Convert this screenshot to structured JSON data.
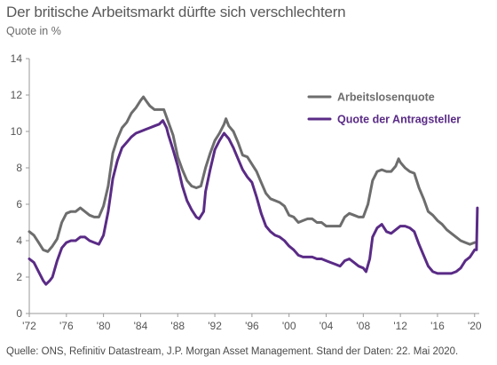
{
  "header": {
    "title": "Der britische Arbeitsmarkt dürfte sich verschlechtern",
    "subtitle": "Quote in %"
  },
  "footer": {
    "source": "Quelle: ONS, Refinitiv Datastream, J.P. Morgan Asset Management. Stand der Daten: 22. Mai 2020."
  },
  "chart_data": {
    "type": "line",
    "title": "Der britische Arbeitsmarkt dürfte sich verschlechtern",
    "subtitle": "Quote in %",
    "xlabel": "",
    "ylabel": "Quote in %",
    "xlim": [
      1972,
      2020.5
    ],
    "ylim": [
      0,
      14
    ],
    "y_ticks": [
      0,
      2,
      4,
      6,
      8,
      10,
      12,
      14
    ],
    "y_tick_labels": [
      "0",
      "2",
      "4",
      "6",
      "8",
      "10",
      "12",
      "14"
    ],
    "x_ticks": [
      1972,
      1976,
      1980,
      1984,
      1988,
      1992,
      1996,
      2000,
      2004,
      2008,
      2012,
      2016,
      2020
    ],
    "x_tick_labels": [
      "'72",
      "'76",
      "'80",
      "'84",
      "'88",
      "'92",
      "'96",
      "'00",
      "'04",
      "'08",
      "'12",
      "'16",
      "'20"
    ],
    "grid": false,
    "legend_position": "top-right",
    "series": [
      {
        "name": "Arbeitslosenquote",
        "color": "#6d6d6d",
        "points": [
          [
            1972.0,
            4.5
          ],
          [
            1972.5,
            4.3
          ],
          [
            1973.0,
            3.9
          ],
          [
            1973.5,
            3.5
          ],
          [
            1974.0,
            3.4
          ],
          [
            1974.5,
            3.7
          ],
          [
            1975.0,
            4.1
          ],
          [
            1975.5,
            5.0
          ],
          [
            1976.0,
            5.5
          ],
          [
            1976.5,
            5.6
          ],
          [
            1977.0,
            5.6
          ],
          [
            1977.5,
            5.8
          ],
          [
            1978.0,
            5.6
          ],
          [
            1978.5,
            5.4
          ],
          [
            1979.0,
            5.3
          ],
          [
            1979.5,
            5.3
          ],
          [
            1980.0,
            5.9
          ],
          [
            1980.5,
            7.0
          ],
          [
            1981.0,
            8.8
          ],
          [
            1981.5,
            9.6
          ],
          [
            1982.0,
            10.2
          ],
          [
            1982.5,
            10.5
          ],
          [
            1983.0,
            11.0
          ],
          [
            1983.5,
            11.3
          ],
          [
            1984.0,
            11.7
          ],
          [
            1984.3,
            11.9
          ],
          [
            1984.7,
            11.6
          ],
          [
            1985.0,
            11.4
          ],
          [
            1985.5,
            11.2
          ],
          [
            1986.0,
            11.2
          ],
          [
            1986.5,
            11.2
          ],
          [
            1987.0,
            10.5
          ],
          [
            1987.5,
            9.8
          ],
          [
            1988.0,
            8.6
          ],
          [
            1988.5,
            7.9
          ],
          [
            1989.0,
            7.3
          ],
          [
            1989.5,
            7.0
          ],
          [
            1990.0,
            6.9
          ],
          [
            1990.5,
            7.0
          ],
          [
            1991.0,
            8.0
          ],
          [
            1991.5,
            8.8
          ],
          [
            1992.0,
            9.5
          ],
          [
            1992.5,
            9.9
          ],
          [
            1993.0,
            10.4
          ],
          [
            1993.2,
            10.7
          ],
          [
            1993.5,
            10.3
          ],
          [
            1994.0,
            10.0
          ],
          [
            1994.5,
            9.4
          ],
          [
            1995.0,
            8.7
          ],
          [
            1995.5,
            8.6
          ],
          [
            1996.0,
            8.2
          ],
          [
            1996.5,
            7.8
          ],
          [
            1997.0,
            7.2
          ],
          [
            1997.5,
            6.6
          ],
          [
            1998.0,
            6.3
          ],
          [
            1998.5,
            6.2
          ],
          [
            1999.0,
            6.1
          ],
          [
            1999.5,
            5.9
          ],
          [
            2000.0,
            5.4
          ],
          [
            2000.5,
            5.3
          ],
          [
            2001.0,
            5.0
          ],
          [
            2001.5,
            5.1
          ],
          [
            2002.0,
            5.2
          ],
          [
            2002.5,
            5.2
          ],
          [
            2003.0,
            5.0
          ],
          [
            2003.5,
            5.0
          ],
          [
            2004.0,
            4.8
          ],
          [
            2004.5,
            4.8
          ],
          [
            2005.0,
            4.8
          ],
          [
            2005.5,
            4.8
          ],
          [
            2006.0,
            5.3
          ],
          [
            2006.5,
            5.5
          ],
          [
            2007.0,
            5.4
          ],
          [
            2007.5,
            5.3
          ],
          [
            2008.0,
            5.3
          ],
          [
            2008.5,
            6.0
          ],
          [
            2009.0,
            7.3
          ],
          [
            2009.5,
            7.8
          ],
          [
            2010.0,
            7.9
          ],
          [
            2010.5,
            7.8
          ],
          [
            2011.0,
            7.8
          ],
          [
            2011.5,
            8.1
          ],
          [
            2011.8,
            8.5
          ],
          [
            2012.0,
            8.3
          ],
          [
            2012.5,
            8.0
          ],
          [
            2013.0,
            7.8
          ],
          [
            2013.5,
            7.7
          ],
          [
            2014.0,
            6.9
          ],
          [
            2014.5,
            6.3
          ],
          [
            2015.0,
            5.6
          ],
          [
            2015.5,
            5.4
          ],
          [
            2016.0,
            5.1
          ],
          [
            2016.5,
            4.9
          ],
          [
            2017.0,
            4.6
          ],
          [
            2017.5,
            4.4
          ],
          [
            2018.0,
            4.2
          ],
          [
            2018.5,
            4.0
          ],
          [
            2019.0,
            3.9
          ],
          [
            2019.5,
            3.8
          ],
          [
            2020.0,
            3.9
          ]
        ]
      },
      {
        "name": "Quote der Antragsteller",
        "color": "#5a2b86",
        "points": [
          [
            1972.0,
            3.0
          ],
          [
            1972.5,
            2.8
          ],
          [
            1973.0,
            2.3
          ],
          [
            1973.5,
            1.8
          ],
          [
            1973.8,
            1.6
          ],
          [
            1974.2,
            1.8
          ],
          [
            1974.5,
            2.0
          ],
          [
            1975.0,
            2.9
          ],
          [
            1975.5,
            3.6
          ],
          [
            1976.0,
            3.9
          ],
          [
            1976.5,
            4.0
          ],
          [
            1977.0,
            4.0
          ],
          [
            1977.5,
            4.2
          ],
          [
            1978.0,
            4.2
          ],
          [
            1978.5,
            4.0
          ],
          [
            1979.0,
            3.9
          ],
          [
            1979.5,
            3.8
          ],
          [
            1980.0,
            4.3
          ],
          [
            1980.5,
            5.6
          ],
          [
            1981.0,
            7.4
          ],
          [
            1981.5,
            8.4
          ],
          [
            1982.0,
            9.1
          ],
          [
            1982.5,
            9.4
          ],
          [
            1983.0,
            9.7
          ],
          [
            1983.5,
            9.9
          ],
          [
            1984.0,
            10.0
          ],
          [
            1984.5,
            10.1
          ],
          [
            1985.0,
            10.2
          ],
          [
            1985.5,
            10.3
          ],
          [
            1986.0,
            10.4
          ],
          [
            1986.4,
            10.6
          ],
          [
            1986.8,
            10.2
          ],
          [
            1987.0,
            9.8
          ],
          [
            1987.5,
            9.0
          ],
          [
            1988.0,
            8.1
          ],
          [
            1988.5,
            7.0
          ],
          [
            1989.0,
            6.2
          ],
          [
            1989.5,
            5.7
          ],
          [
            1990.0,
            5.3
          ],
          [
            1990.3,
            5.2
          ],
          [
            1990.8,
            5.6
          ],
          [
            1991.0,
            6.7
          ],
          [
            1991.5,
            7.9
          ],
          [
            1992.0,
            9.0
          ],
          [
            1992.5,
            9.5
          ],
          [
            1993.0,
            9.9
          ],
          [
            1993.5,
            9.6
          ],
          [
            1994.0,
            9.1
          ],
          [
            1994.5,
            8.5
          ],
          [
            1995.0,
            7.9
          ],
          [
            1995.5,
            7.5
          ],
          [
            1996.0,
            7.2
          ],
          [
            1996.5,
            6.4
          ],
          [
            1997.0,
            5.5
          ],
          [
            1997.5,
            4.8
          ],
          [
            1998.0,
            4.5
          ],
          [
            1998.5,
            4.3
          ],
          [
            1999.0,
            4.2
          ],
          [
            1999.5,
            4.0
          ],
          [
            2000.0,
            3.7
          ],
          [
            2000.5,
            3.5
          ],
          [
            2001.0,
            3.2
          ],
          [
            2001.5,
            3.1
          ],
          [
            2002.0,
            3.1
          ],
          [
            2002.5,
            3.1
          ],
          [
            2003.0,
            3.0
          ],
          [
            2003.5,
            3.0
          ],
          [
            2004.0,
            2.9
          ],
          [
            2004.5,
            2.8
          ],
          [
            2005.0,
            2.7
          ],
          [
            2005.5,
            2.6
          ],
          [
            2006.0,
            2.9
          ],
          [
            2006.5,
            3.0
          ],
          [
            2007.0,
            2.8
          ],
          [
            2007.5,
            2.6
          ],
          [
            2008.0,
            2.5
          ],
          [
            2008.3,
            2.3
          ],
          [
            2008.7,
            3.0
          ],
          [
            2009.0,
            4.2
          ],
          [
            2009.5,
            4.7
          ],
          [
            2010.0,
            4.9
          ],
          [
            2010.5,
            4.5
          ],
          [
            2011.0,
            4.4
          ],
          [
            2011.5,
            4.6
          ],
          [
            2012.0,
            4.8
          ],
          [
            2012.5,
            4.8
          ],
          [
            2013.0,
            4.7
          ],
          [
            2013.5,
            4.5
          ],
          [
            2014.0,
            3.8
          ],
          [
            2014.5,
            3.2
          ],
          [
            2015.0,
            2.6
          ],
          [
            2015.5,
            2.3
          ],
          [
            2016.0,
            2.2
          ],
          [
            2016.5,
            2.2
          ],
          [
            2017.0,
            2.2
          ],
          [
            2017.5,
            2.2
          ],
          [
            2018.0,
            2.3
          ],
          [
            2018.5,
            2.5
          ],
          [
            2019.0,
            2.9
          ],
          [
            2019.5,
            3.1
          ],
          [
            2020.0,
            3.5
          ],
          [
            2020.2,
            3.5
          ],
          [
            2020.3,
            5.8
          ]
        ]
      }
    ]
  }
}
